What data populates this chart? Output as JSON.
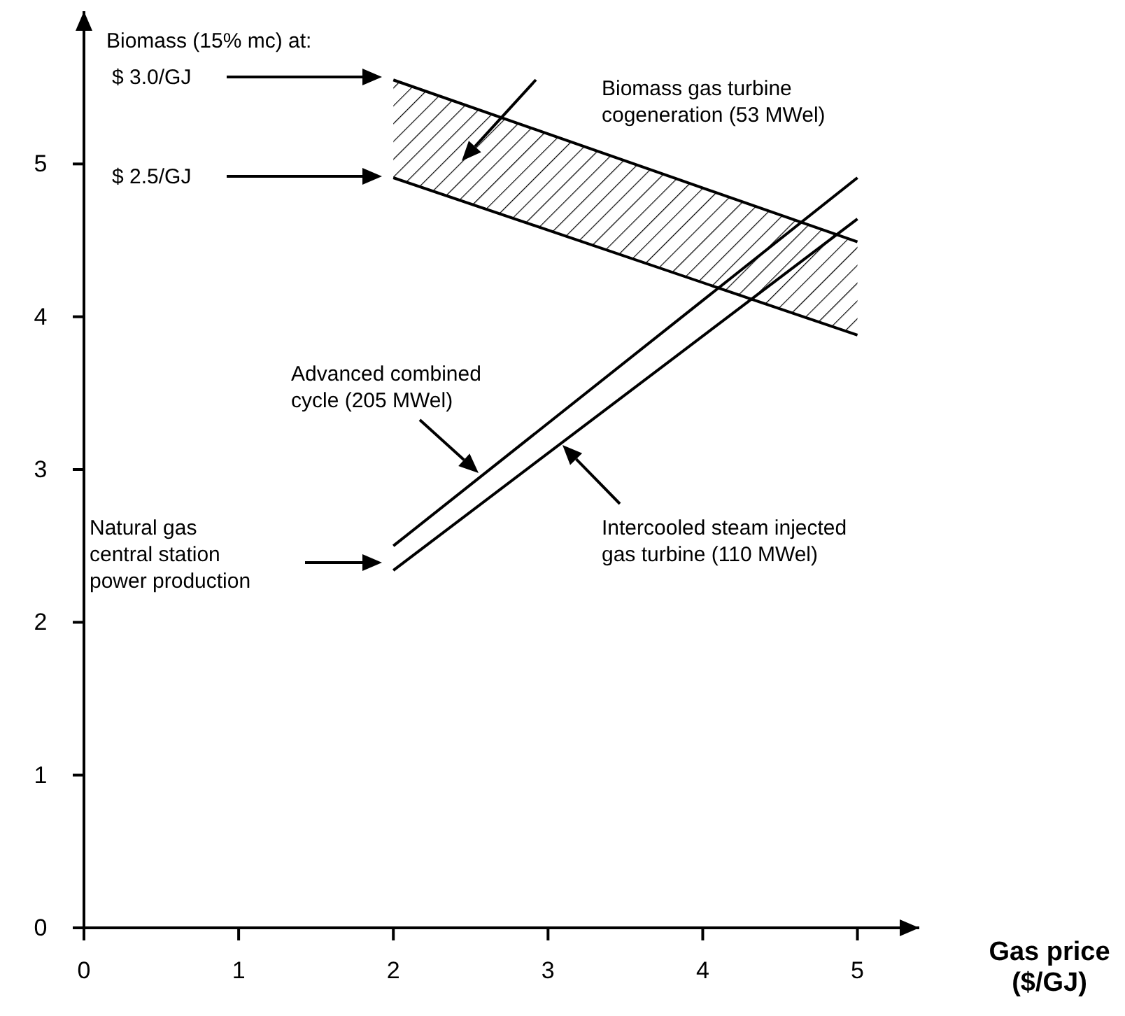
{
  "chart_data": {
    "type": "line",
    "xlabel": "Gas price\n($/GJ)",
    "xlim": [
      0,
      5.4
    ],
    "ylim": [
      0,
      6
    ],
    "xticks": [
      0,
      1,
      2,
      3,
      4,
      5
    ],
    "yticks": [
      0,
      1,
      2,
      3,
      4,
      5
    ],
    "grid": false,
    "legend": false,
    "marker": "none",
    "line_style": "solid",
    "x": [
      2,
      5
    ],
    "series": [
      {
        "color": "#000000",
        "values": [
          5.55,
          4.49
        ]
      },
      {
        "type": "line",
        "color": "#000000",
        "values": [
          4.91,
          3.88
        ]
      },
      {
        "type": "line",
        "color": "#000000",
        "values": [
          2.5,
          4.91
        ]
      },
      {
        "type": "line",
        "color": "#000000",
        "values": [
          2.34,
          4.64
        ]
      }
    ],
    "annotations": [
      "Biomass (15% mc) at:",
      "$  3.0/GJ",
      "$  2.5/GJ",
      "Biomass gas turbine\ncogeneration (53 MWel)",
      "Advanced combined\ncycle (205 MWel)",
      "Intercooled steam injected\ngas turbine (110 MWel)",
      "Natural gas\ncentral station\npower production"
    ]
  }
}
